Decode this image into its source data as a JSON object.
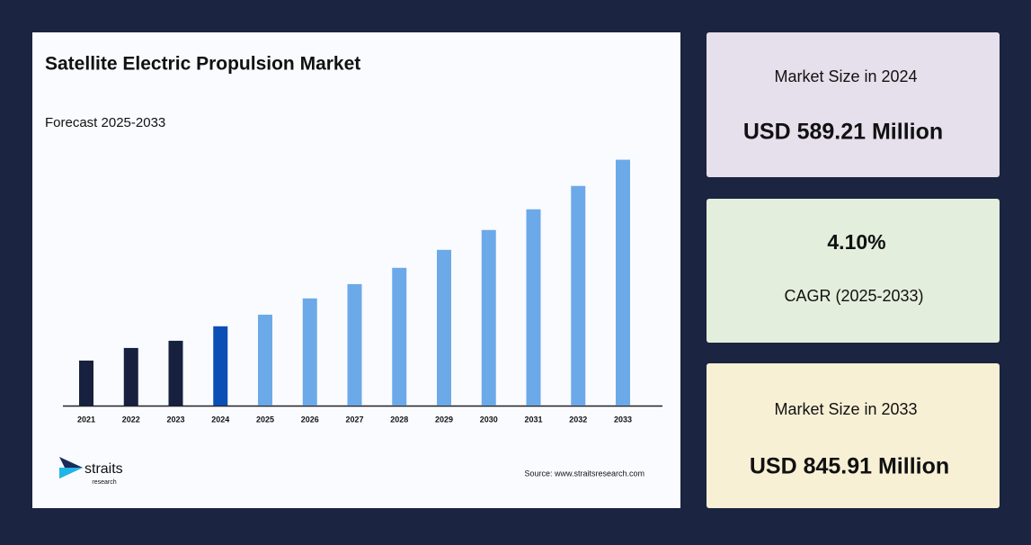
{
  "chart_data": {
    "type": "bar",
    "title": "Satellite Electric Propulsion Market",
    "subtitle": "Forecast 2025-2033",
    "categories": [
      "2021",
      "2022",
      "2023",
      "2024",
      "2025",
      "2026",
      "2027",
      "2028",
      "2029",
      "2030",
      "2031",
      "2032",
      "2033"
    ],
    "values": [
      536.4,
      555.8,
      566.9,
      589.21,
      607.1,
      632.2,
      654.2,
      679.3,
      707.0,
      737.6,
      769.5,
      805.5,
      845.91
    ],
    "colors": [
      "#17213f",
      "#17213f",
      "#17213f",
      "#0a4fb5",
      "#6ca9e8",
      "#6ca9e8",
      "#6ca9e8",
      "#6ca9e8",
      "#6ca9e8",
      "#6ca9e8",
      "#6ca9e8",
      "#6ca9e8",
      "#6ca9e8"
    ],
    "ylim": [
      467,
      880
    ],
    "source": "Source: www.straitsresearch.com"
  },
  "logo": {
    "name": "straits",
    "tagline": "research"
  },
  "cards": [
    {
      "label": "Market Size in 2024",
      "value": "USD 589.21 Million"
    },
    {
      "label": "CAGR (2025-2033)",
      "value": "4.10%"
    },
    {
      "label": "Market Size in 2033",
      "value": "USD 845.91 Million"
    }
  ]
}
